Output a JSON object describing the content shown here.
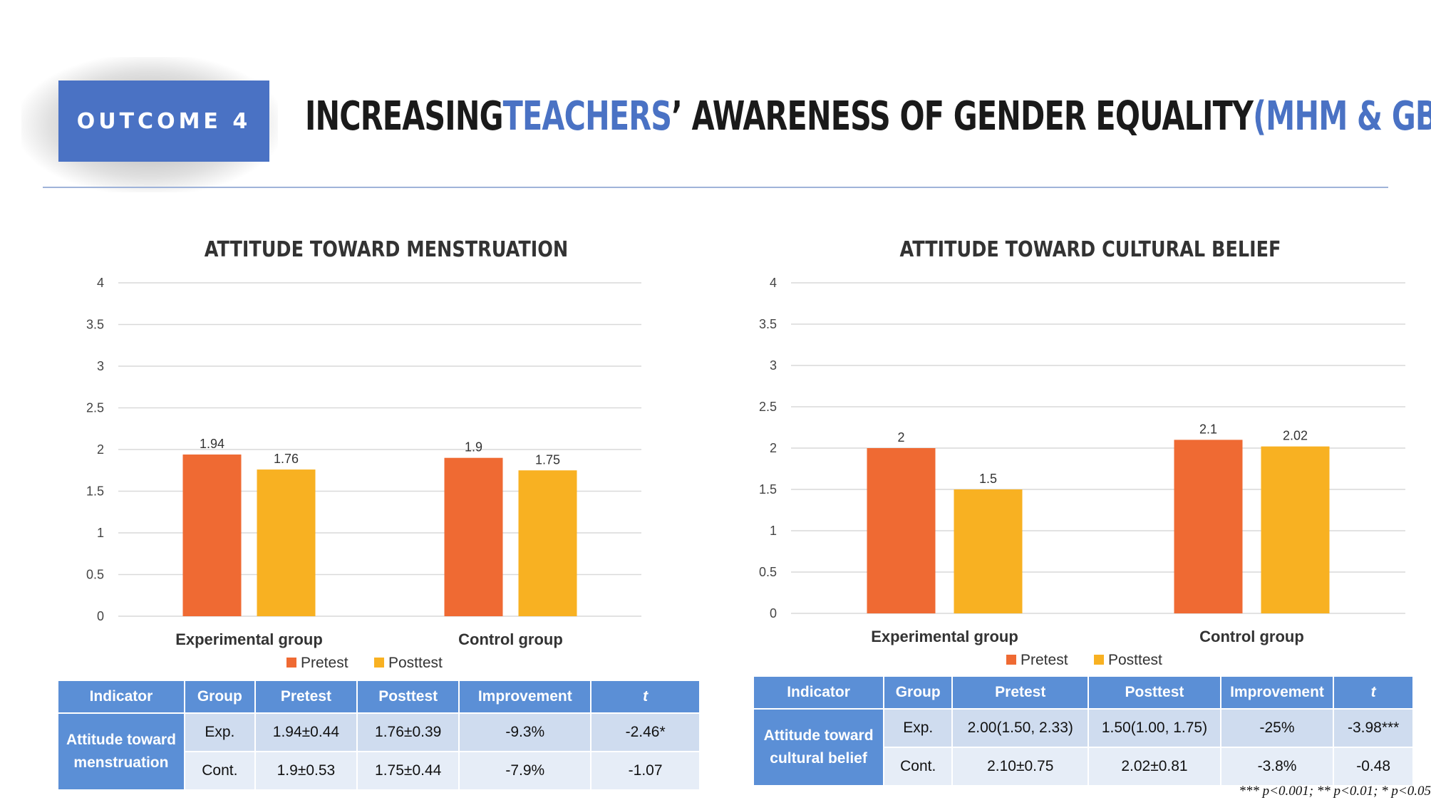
{
  "badge": {
    "label": "OUTCOME 4",
    "color": "#4a72c4"
  },
  "title": {
    "part1": "INCREASING ",
    "part2": "TEACHERS",
    "part3": "’ AWARENESS OF GENDER EQUALITY ",
    "part4": "(MHM & GBV)"
  },
  "colors": {
    "pretest": "#ef6a33",
    "posttest": "#f8b122",
    "table_header": "#5b8fd6",
    "accent": "#4a72c4"
  },
  "chart_data": [
    {
      "type": "bar",
      "title": "ATTITUDE TOWARD MENSTRUATION",
      "categories": [
        "Experimental group",
        "Control group"
      ],
      "series": [
        {
          "name": "Pretest",
          "values": [
            1.94,
            1.9
          ],
          "labels": [
            "1.94",
            "1.9"
          ]
        },
        {
          "name": "Posttest",
          "values": [
            1.76,
            1.75
          ],
          "labels": [
            "1.76",
            "1.75"
          ]
        }
      ],
      "ylim": [
        0,
        4
      ],
      "yticks": [
        "0",
        "0.5",
        "1",
        "1.5",
        "2",
        "2.5",
        "3",
        "3.5",
        "4"
      ],
      "grid": true,
      "legend": "bottom"
    },
    {
      "type": "bar",
      "title": "ATTITUDE TOWARD CULTURAL BELIEF",
      "categories": [
        "Experimental group",
        "Control group"
      ],
      "series": [
        {
          "name": "Pretest",
          "values": [
            2,
            2.1
          ],
          "labels": [
            "2",
            "2.1"
          ]
        },
        {
          "name": "Posttest",
          "values": [
            1.5,
            2.02
          ],
          "labels": [
            "1.5",
            "2.02"
          ]
        }
      ],
      "ylim": [
        0,
        4
      ],
      "yticks": [
        "0",
        "0.5",
        "1",
        "1.5",
        "2",
        "2.5",
        "3",
        "3.5",
        "4"
      ],
      "grid": true,
      "legend": "bottom"
    }
  ],
  "tables": {
    "headers": [
      "Indicator",
      "Group",
      "Pretest",
      "Posttest",
      "Improvement",
      "t"
    ],
    "left": {
      "indicator": "Attitude toward menstruation",
      "rows": [
        [
          "Exp.",
          "1.94±0.44",
          "1.76±0.39",
          "-9.3%",
          "-2.46*"
        ],
        [
          "Cont.",
          "1.9±0.53",
          "1.75±0.44",
          "-7.9%",
          "-1.07"
        ]
      ]
    },
    "right": {
      "indicator": "Attitude toward cultural belief",
      "rows": [
        [
          "Exp.",
          "2.00(1.50, 2.33)",
          "1.50(1.00, 1.75)",
          "-25%",
          "-3.98***"
        ],
        [
          "Cont.",
          "2.10±0.75",
          "2.02±0.81",
          "-3.8%",
          "-0.48"
        ]
      ]
    }
  },
  "footnote": "*** p<0.001; ** p<0.01; * p<0.05"
}
